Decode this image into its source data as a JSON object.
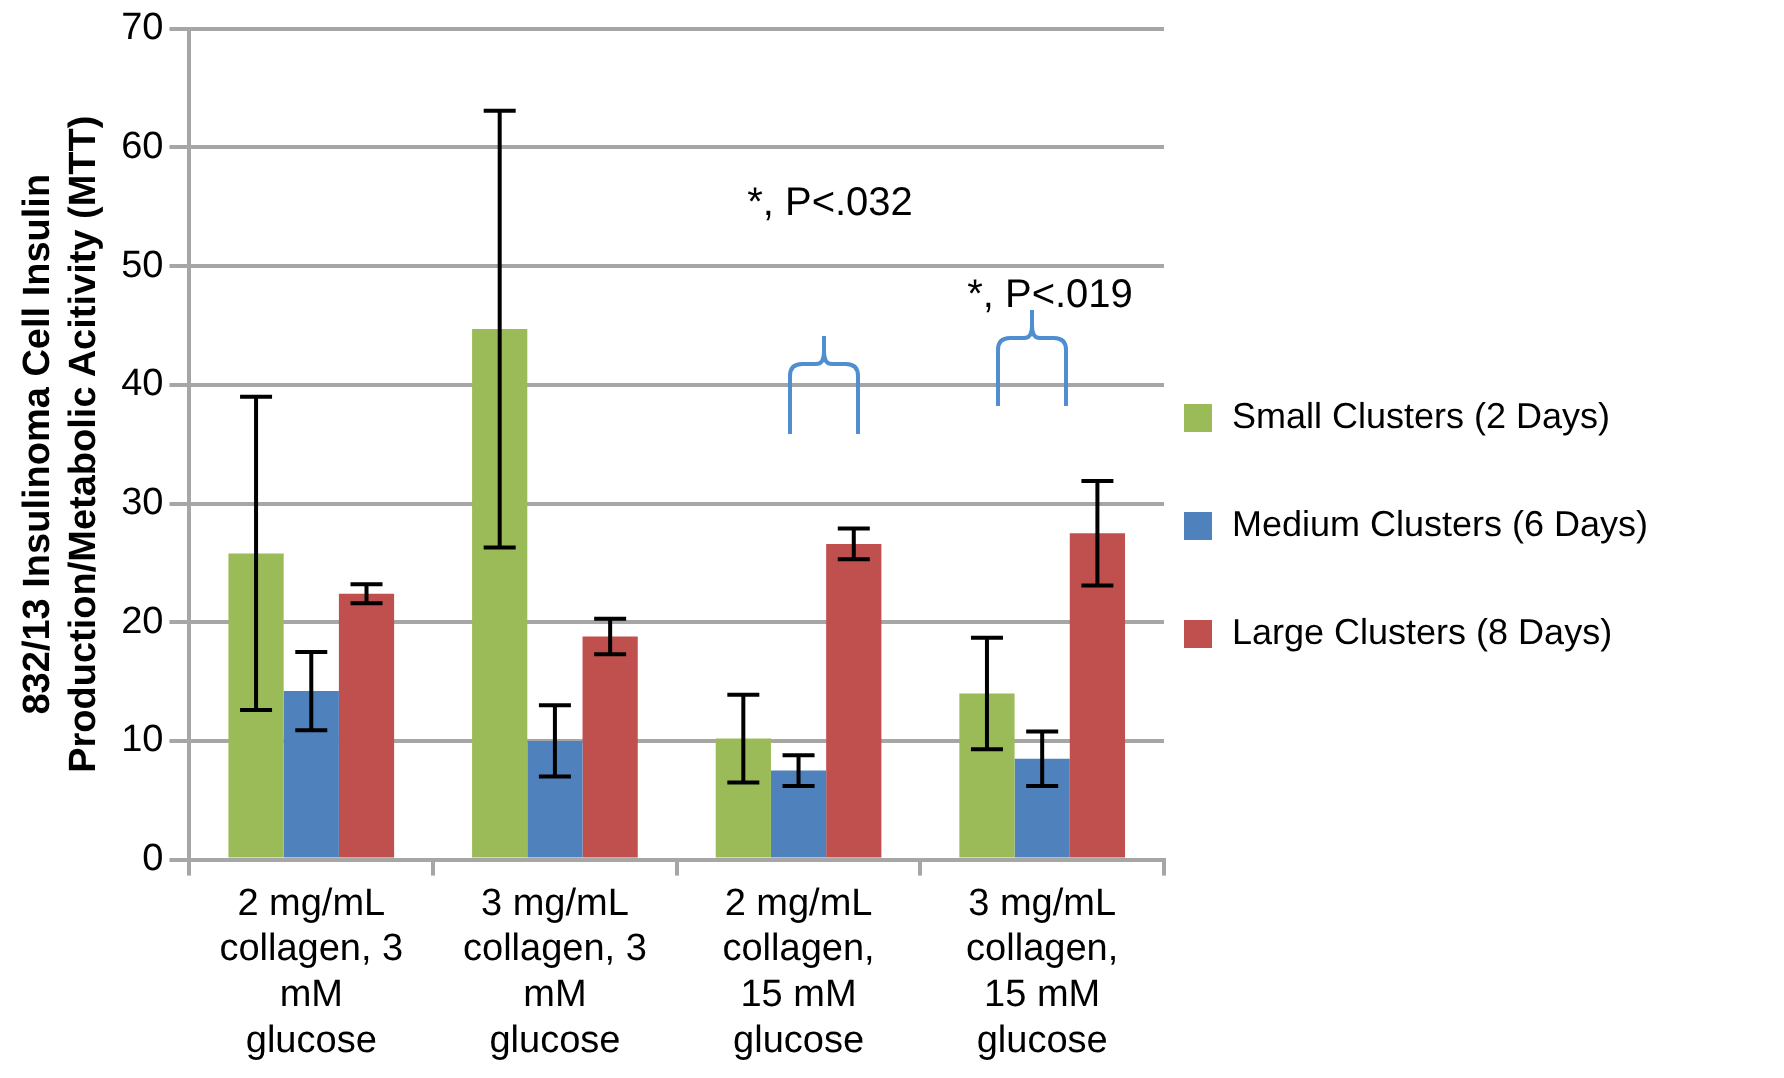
{
  "chart_data": {
    "type": "bar",
    "ylabel": "832/13 Insulinoma Cell Insulin Production/Metabolic Acitivity (MTT)",
    "categories": [
      "2 mg/mL collagen, 3 mM glucose",
      "3 mg/mL collagen, 3 mM glucose",
      "2 mg/mL collagen, 15 mM glucose",
      "3 mg/mL collagen, 15 mM glucose"
    ],
    "series": [
      {
        "name": "Small Clusters (2 Days)",
        "color": "#9bbb59",
        "values": [
          25.8,
          44.7,
          10.2,
          14.0
        ],
        "errors": [
          13.2,
          18.4,
          3.7,
          4.7
        ]
      },
      {
        "name": "Medium Clusters (6 Days)",
        "color": "#4f81bd",
        "values": [
          14.2,
          10.0,
          7.5,
          8.5
        ],
        "errors": [
          3.3,
          3.0,
          1.3,
          2.3
        ]
      },
      {
        "name": "Large Clusters (8 Days)",
        "color": "#c0504d",
        "values": [
          22.4,
          18.8,
          26.6,
          27.5
        ],
        "errors": [
          0.8,
          1.5,
          1.3,
          4.4
        ]
      }
    ],
    "annotations": [
      "*, P<.032",
      "*, P<.019"
    ],
    "ylim": [
      0,
      70
    ],
    "yticks": [
      0,
      10,
      20,
      30,
      40,
      50,
      60,
      70
    ],
    "grid": "y",
    "legend": "right"
  }
}
